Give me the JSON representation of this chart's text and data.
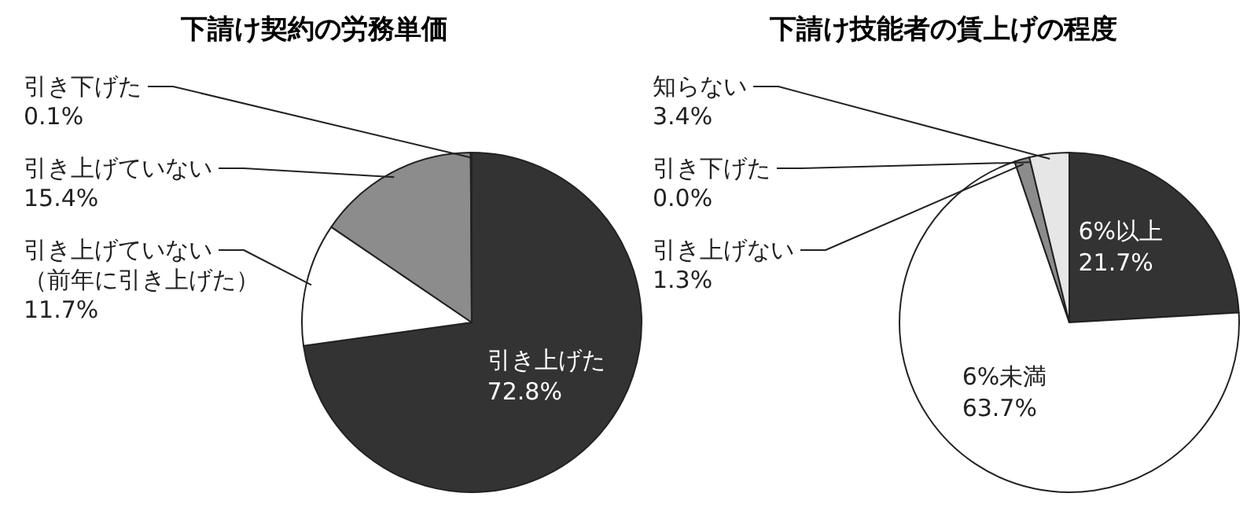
{
  "chart_data": [
    {
      "type": "pie",
      "title": "下請け契約の労務単価",
      "categories": [
        "引き上げた",
        "引き上げていない（前年に引き上げた）",
        "引き上げていない",
        "引き下げた"
      ],
      "values": [
        72.8,
        11.7,
        15.4,
        0.1
      ],
      "colors": [
        "#333333",
        "#ffffff",
        "#8c8c8c",
        "#8c8c8c"
      ],
      "value_labels": [
        "72.8%",
        "11.7%",
        "15.4%",
        "0.1%"
      ]
    },
    {
      "type": "pie",
      "title": "下請け技能者の賃上げの程度",
      "categories": [
        "6%以上",
        "6%未満",
        "引き上げない",
        "引き下げた",
        "知らない"
      ],
      "values": [
        21.7,
        63.7,
        1.3,
        0.0,
        3.4
      ],
      "colors": [
        "#333333",
        "#ffffff",
        "#8c8c8c",
        "#555555",
        "#e6e6e6"
      ],
      "value_labels": [
        "21.7%",
        "63.7%",
        "1.3%",
        "0.0%",
        "3.4%"
      ]
    }
  ]
}
